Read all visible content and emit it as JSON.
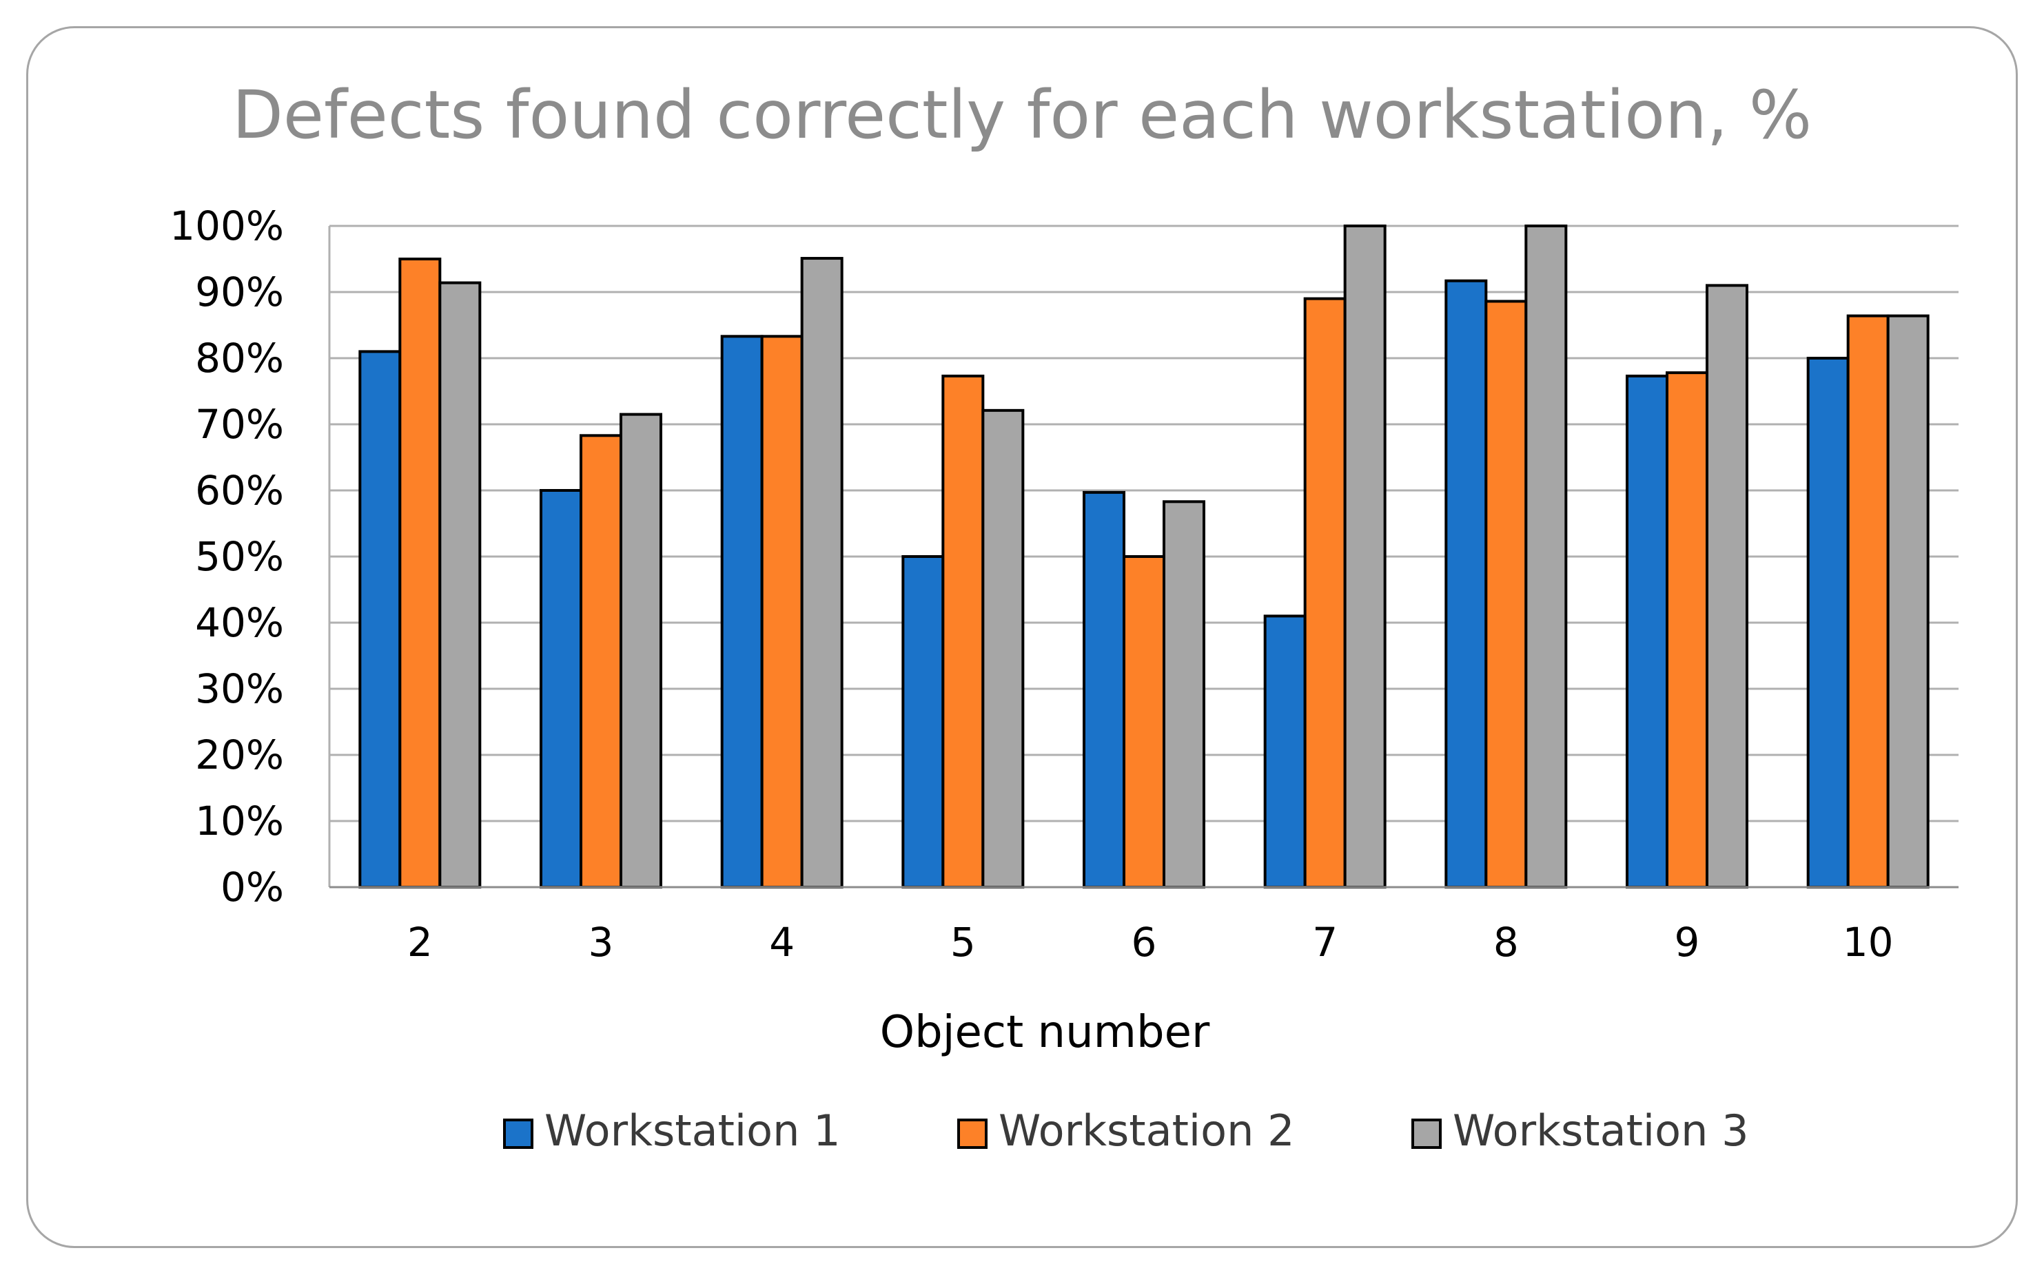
{
  "chart_data": {
    "type": "bar",
    "title": "Defects found correctly  for each workstation, %",
    "xlabel": "Object number",
    "ylabel": "",
    "categories": [
      "2",
      "3",
      "4",
      "5",
      "6",
      "7",
      "8",
      "9",
      "10"
    ],
    "series": [
      {
        "name": "Workstation 1",
        "color": "#1b73c9",
        "values": [
          81,
          60,
          83.3,
          50,
          59.7,
          41,
          91.7,
          77.3,
          80
        ]
      },
      {
        "name": "Workstation 2",
        "color": "#fd8128",
        "values": [
          95,
          68.3,
          83.3,
          77.3,
          50,
          89,
          88.6,
          77.8,
          86.4
        ]
      },
      {
        "name": "Workstation 3",
        "color": "#a6a6a6",
        "values": [
          91.4,
          71.5,
          95.1,
          72.1,
          58.3,
          100,
          100,
          91,
          86.4
        ]
      }
    ],
    "ylim": [
      0,
      100
    ],
    "yticks": [
      "0%",
      "10%",
      "20%",
      "30%",
      "40%",
      "50%",
      "60%",
      "70%",
      "80%",
      "90%",
      "100%"
    ],
    "grid": true,
    "legend_position": "bottom"
  }
}
